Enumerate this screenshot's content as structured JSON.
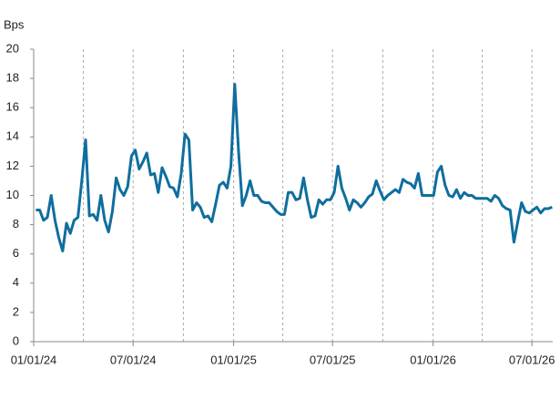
{
  "chart_data": {
    "type": "line",
    "y_label": "Bps",
    "x": [
      "2024-01-05",
      "2024-01-12",
      "2024-01-19",
      "2024-01-26",
      "2024-02-02",
      "2024-02-09",
      "2024-02-16",
      "2024-02-23",
      "2024-03-01",
      "2024-03-08",
      "2024-03-15",
      "2024-03-22",
      "2024-03-29",
      "2024-04-05",
      "2024-04-12",
      "2024-04-19",
      "2024-04-26",
      "2024-05-03",
      "2024-05-10",
      "2024-05-17",
      "2024-05-24",
      "2024-05-31",
      "2024-06-07",
      "2024-06-14",
      "2024-06-21",
      "2024-06-28",
      "2024-07-05",
      "2024-07-12",
      "2024-07-19",
      "2024-07-26",
      "2024-08-02",
      "2024-08-09",
      "2024-08-16",
      "2024-08-23",
      "2024-08-30",
      "2024-09-06",
      "2024-09-13",
      "2024-09-20",
      "2024-09-27",
      "2024-10-04",
      "2024-10-11",
      "2024-10-18",
      "2024-10-25",
      "2024-11-01",
      "2024-11-08",
      "2024-11-15",
      "2024-11-22",
      "2024-11-29",
      "2024-12-06",
      "2024-12-13",
      "2024-12-20",
      "2024-12-27",
      "2025-01-03",
      "2025-01-10",
      "2025-01-17",
      "2025-01-24",
      "2025-01-31",
      "2025-02-07",
      "2025-02-14",
      "2025-02-21",
      "2025-02-28",
      "2025-03-07",
      "2025-03-14",
      "2025-03-21",
      "2025-03-28",
      "2025-04-04",
      "2025-04-11",
      "2025-04-18",
      "2025-04-25",
      "2025-05-02",
      "2025-05-09",
      "2025-05-16",
      "2025-05-23",
      "2025-05-30",
      "2025-06-06",
      "2025-06-13",
      "2025-06-20",
      "2025-06-27",
      "2025-07-04",
      "2025-07-11",
      "2025-07-18",
      "2025-07-25",
      "2025-08-01",
      "2025-08-08",
      "2025-08-15",
      "2025-08-22",
      "2025-08-29",
      "2025-09-05",
      "2025-09-12",
      "2025-09-19",
      "2025-09-26",
      "2025-10-03",
      "2025-10-10",
      "2025-10-17",
      "2025-10-24",
      "2025-10-31",
      "2025-11-07",
      "2025-11-14",
      "2025-11-21",
      "2025-11-28",
      "2025-12-05",
      "2025-12-12",
      "2025-12-19",
      "2025-12-26",
      "2026-01-02",
      "2026-01-09",
      "2026-01-16",
      "2026-01-23",
      "2026-01-30",
      "2026-02-06",
      "2026-02-13",
      "2026-02-20",
      "2026-02-27",
      "2026-03-06",
      "2026-03-13",
      "2026-03-20",
      "2026-03-27",
      "2026-04-03",
      "2026-04-10",
      "2026-04-17",
      "2026-04-24",
      "2026-05-01",
      "2026-05-08",
      "2026-05-15",
      "2026-05-22",
      "2026-05-29",
      "2026-06-05",
      "2026-06-12",
      "2026-06-19",
      "2026-06-26",
      "2026-07-03",
      "2026-07-10",
      "2026-07-17",
      "2026-07-24",
      "2026-07-31",
      "2026-08-07"
    ],
    "series": [
      {
        "color": "#0f6e9e",
        "values": [
          9,
          9,
          8.3,
          8.5,
          10,
          8.3,
          7.1,
          6.2,
          8.1,
          7.4,
          8.3,
          8.5,
          11,
          13.8,
          8.6,
          8.7,
          8.3,
          10,
          8.3,
          7.5,
          8.9,
          11.2,
          10.4,
          10,
          10.6,
          12.7,
          13.1,
          11.8,
          12.3,
          12.9,
          11.4,
          11.5,
          10.2,
          11.9,
          11.3,
          10.6,
          10.5,
          9.9,
          11.5,
          14.2,
          13.8,
          9,
          9.5,
          9.2,
          8.5,
          8.6,
          8.2,
          9.4,
          10.7,
          10.9,
          10.5,
          12,
          17.6,
          13,
          9.3,
          10,
          11,
          10,
          10,
          9.6,
          9.5,
          9.5,
          9.2,
          8.9,
          8.7,
          8.7,
          10.2,
          10.2,
          9.7,
          9.8,
          11.2,
          9.7,
          8.5,
          8.6,
          9.7,
          9.4,
          9.7,
          9.7,
          10.2,
          12,
          10.5,
          9.8,
          9,
          9.7,
          9.5,
          9.2,
          9.5,
          9.9,
          10.1,
          11,
          10.3,
          9.7,
          10,
          10.2,
          10.4,
          10.2,
          11.1,
          10.9,
          10.8,
          10.5,
          11.5,
          10,
          10,
          10,
          10,
          11.6,
          12,
          10.7,
          10,
          9.9,
          10.4,
          9.8,
          10.2,
          10,
          10,
          9.8,
          9.8,
          9.8,
          9.8,
          9.6,
          10,
          9.8,
          9.3,
          9.1,
          9,
          6.8,
          8.2,
          9.5,
          8.9,
          8.8,
          9,
          9.2,
          8.8,
          9.1,
          9.1,
          9.2
        ]
      }
    ],
    "xlim": [
      "2024-01-01",
      "2026-08-08"
    ],
    "xticks": [
      {
        "value": "2024-01-01",
        "label": "01/01/24"
      },
      {
        "value": "2024-07-01",
        "label": "07/01/24"
      },
      {
        "value": "2025-01-01",
        "label": "01/01/25"
      },
      {
        "value": "2025-07-01",
        "label": "07/01/25"
      },
      {
        "value": "2026-01-01",
        "label": "01/01/26"
      },
      {
        "value": "2026-07-01",
        "label": "07/01/26"
      }
    ],
    "xgrid": [
      "2024-04-01",
      "2024-07-01",
      "2024-10-01",
      "2025-01-01",
      "2025-04-01",
      "2025-07-01",
      "2025-10-01",
      "2026-01-01",
      "2026-04-01",
      "2026-07-01"
    ],
    "ylim": [
      0,
      20
    ],
    "yticks": [
      0,
      2,
      4,
      6,
      8,
      10,
      12,
      14,
      16,
      18,
      20
    ]
  }
}
